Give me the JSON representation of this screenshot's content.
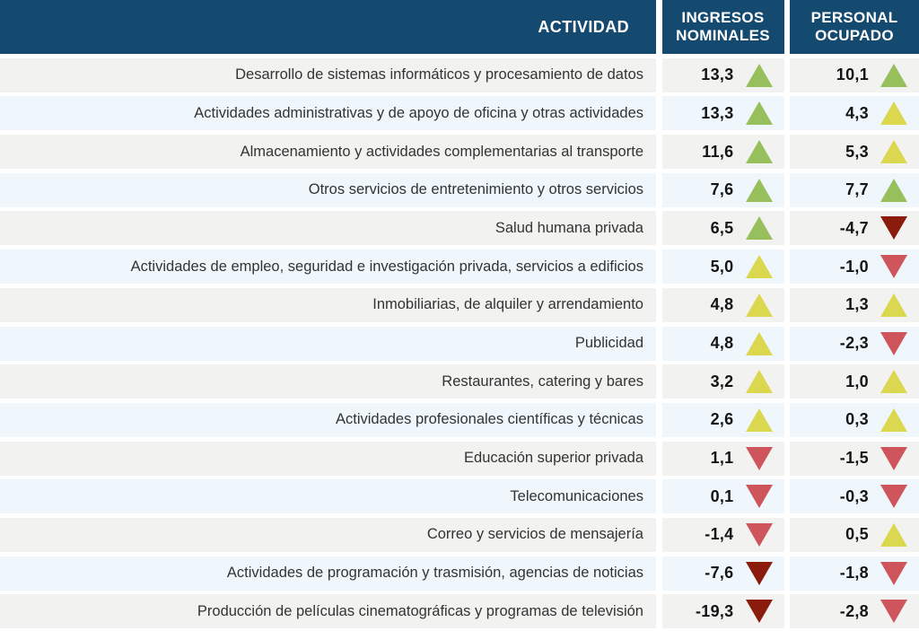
{
  "colors": {
    "header_bg": "#154A70",
    "header_text": "#FFFFFF",
    "row_gray": "#F2F2F0",
    "row_blue": "#EFF7FC",
    "arrow_green": "#97C05C",
    "arrow_yellow": "#DBD74E",
    "arrow_red": "#CE555C",
    "arrow_darkred": "#8B1B0D"
  },
  "table": {
    "header": {
      "activity": "ACTIVIDAD",
      "ingresos": "INGRESOS NOMINALES",
      "personal": "PERSONAL OCUPADO"
    },
    "rows": [
      {
        "activity": "Desarrollo de sistemas informáticos y procesamiento de datos",
        "ingresos": {
          "value": "13,3",
          "dir": "up",
          "color": "green"
        },
        "personal": {
          "value": "10,1",
          "dir": "up",
          "color": "green"
        }
      },
      {
        "activity": "Actividades administrativas y de apoyo de oficina y otras actividades",
        "ingresos": {
          "value": "13,3",
          "dir": "up",
          "color": "green"
        },
        "personal": {
          "value": "4,3",
          "dir": "up",
          "color": "yellow"
        }
      },
      {
        "activity": "Almacenamiento y actividades complementarias al transporte",
        "ingresos": {
          "value": "11,6",
          "dir": "up",
          "color": "green"
        },
        "personal": {
          "value": "5,3",
          "dir": "up",
          "color": "yellow"
        }
      },
      {
        "activity": "Otros servicios de entretenimiento y otros servicios",
        "ingresos": {
          "value": "7,6",
          "dir": "up",
          "color": "green"
        },
        "personal": {
          "value": "7,7",
          "dir": "up",
          "color": "green"
        }
      },
      {
        "activity": "Salud humana privada",
        "ingresos": {
          "value": "6,5",
          "dir": "up",
          "color": "green"
        },
        "personal": {
          "value": "-4,7",
          "dir": "down",
          "color": "darkred"
        }
      },
      {
        "activity": "Actividades de empleo, seguridad e investigación privada, servicios a edificios",
        "ingresos": {
          "value": "5,0",
          "dir": "up",
          "color": "yellow"
        },
        "personal": {
          "value": "-1,0",
          "dir": "down",
          "color": "red"
        }
      },
      {
        "activity": "Inmobiliarias,  de alquiler y arrendamiento",
        "ingresos": {
          "value": "4,8",
          "dir": "up",
          "color": "yellow"
        },
        "personal": {
          "value": "1,3",
          "dir": "up",
          "color": "yellow"
        }
      },
      {
        "activity": "Publicidad",
        "ingresos": {
          "value": "4,8",
          "dir": "up",
          "color": "yellow"
        },
        "personal": {
          "value": "-2,3",
          "dir": "down",
          "color": "red"
        }
      },
      {
        "activity": "Restaurantes, catering y bares",
        "ingresos": {
          "value": "3,2",
          "dir": "up",
          "color": "yellow"
        },
        "personal": {
          "value": "1,0",
          "dir": "up",
          "color": "yellow"
        }
      },
      {
        "activity": "Actividades profesionales científicas y técnicas",
        "ingresos": {
          "value": "2,6",
          "dir": "up",
          "color": "yellow"
        },
        "personal": {
          "value": "0,3",
          "dir": "up",
          "color": "yellow"
        }
      },
      {
        "activity": "Educación superior privada",
        "ingresos": {
          "value": "1,1",
          "dir": "down",
          "color": "red"
        },
        "personal": {
          "value": "-1,5",
          "dir": "down",
          "color": "red"
        }
      },
      {
        "activity": "Telecomunicaciones",
        "ingresos": {
          "value": "0,1",
          "dir": "down",
          "color": "red"
        },
        "personal": {
          "value": "-0,3",
          "dir": "down",
          "color": "red"
        }
      },
      {
        "activity": "Correo y servicios de mensajería",
        "ingresos": {
          "value": "-1,4",
          "dir": "down",
          "color": "red"
        },
        "personal": {
          "value": "0,5",
          "dir": "up",
          "color": "yellow"
        }
      },
      {
        "activity": "Actividades de programación y trasmisión, agencias de noticias",
        "ingresos": {
          "value": "-7,6",
          "dir": "down",
          "color": "darkred"
        },
        "personal": {
          "value": "-1,8",
          "dir": "down",
          "color": "red"
        }
      },
      {
        "activity": "Producción de películas cinematográficas y programas de televisión",
        "ingresos": {
          "value": "-19,3",
          "dir": "down",
          "color": "darkred"
        },
        "personal": {
          "value": "-2,8",
          "dir": "down",
          "color": "red"
        }
      }
    ]
  },
  "chart_data": {
    "type": "table",
    "columns": [
      "ACTIVIDAD",
      "INGRESOS NOMINALES",
      "PERSONAL OCUPADO"
    ],
    "rows": [
      {
        "actividad": "Desarrollo de sistemas informáticos y procesamiento de datos",
        "ingresos_nominales": 13.3,
        "ingresos_trend": "up-green",
        "personal_ocupado": 10.1,
        "personal_trend": "up-green"
      },
      {
        "actividad": "Actividades administrativas y de apoyo de oficina y otras actividades",
        "ingresos_nominales": 13.3,
        "ingresos_trend": "up-green",
        "personal_ocupado": 4.3,
        "personal_trend": "up-yellow"
      },
      {
        "actividad": "Almacenamiento y actividades complementarias al transporte",
        "ingresos_nominales": 11.6,
        "ingresos_trend": "up-green",
        "personal_ocupado": 5.3,
        "personal_trend": "up-yellow"
      },
      {
        "actividad": "Otros servicios de entretenimiento y otros servicios",
        "ingresos_nominales": 7.6,
        "ingresos_trend": "up-green",
        "personal_ocupado": 7.7,
        "personal_trend": "up-green"
      },
      {
        "actividad": "Salud humana privada",
        "ingresos_nominales": 6.5,
        "ingresos_trend": "up-green",
        "personal_ocupado": -4.7,
        "personal_trend": "down-darkred"
      },
      {
        "actividad": "Actividades de empleo, seguridad e investigación privada, servicios a edificios",
        "ingresos_nominales": 5.0,
        "ingresos_trend": "up-yellow",
        "personal_ocupado": -1.0,
        "personal_trend": "down-red"
      },
      {
        "actividad": "Inmobiliarias,  de alquiler y arrendamiento",
        "ingresos_nominales": 4.8,
        "ingresos_trend": "up-yellow",
        "personal_ocupado": 1.3,
        "personal_trend": "up-yellow"
      },
      {
        "actividad": "Publicidad",
        "ingresos_nominales": 4.8,
        "ingresos_trend": "up-yellow",
        "personal_ocupado": -2.3,
        "personal_trend": "down-red"
      },
      {
        "actividad": "Restaurantes, catering y bares",
        "ingresos_nominales": 3.2,
        "ingresos_trend": "up-yellow",
        "personal_ocupado": 1.0,
        "personal_trend": "up-yellow"
      },
      {
        "actividad": "Actividades profesionales científicas y técnicas",
        "ingresos_nominales": 2.6,
        "ingresos_trend": "up-yellow",
        "personal_ocupado": 0.3,
        "personal_trend": "up-yellow"
      },
      {
        "actividad": "Educación superior privada",
        "ingresos_nominales": 1.1,
        "ingresos_trend": "down-red",
        "personal_ocupado": -1.5,
        "personal_trend": "down-red"
      },
      {
        "actividad": "Telecomunicaciones",
        "ingresos_nominales": 0.1,
        "ingresos_trend": "down-red",
        "personal_ocupado": -0.3,
        "personal_trend": "down-red"
      },
      {
        "actividad": "Correo y servicios de mensajería",
        "ingresos_nominales": -1.4,
        "ingresos_trend": "down-red",
        "personal_ocupado": 0.5,
        "personal_trend": "up-yellow"
      },
      {
        "actividad": "Actividades de programación y trasmisión, agencias de noticias",
        "ingresos_nominales": -7.6,
        "ingresos_trend": "down-darkred",
        "personal_ocupado": -1.8,
        "personal_trend": "down-red"
      },
      {
        "actividad": "Producción de películas cinematográficas y programas de televisión",
        "ingresos_nominales": -19.3,
        "ingresos_trend": "down-darkred",
        "personal_ocupado": -2.8,
        "personal_trend": "down-red"
      }
    ]
  }
}
